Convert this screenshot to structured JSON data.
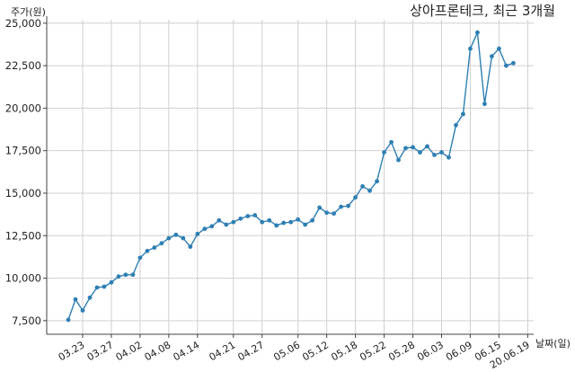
{
  "chart_data": {
    "type": "line",
    "title": "상아프론테크, 최근 3개월",
    "ylabel": "주가(원)",
    "xlabel": "날짜(일)",
    "ylim": [
      6700,
      25200
    ],
    "y_ticks": [
      7500,
      10000,
      12500,
      15000,
      17500,
      20000,
      22500,
      25000
    ],
    "y_tick_labels": [
      "7,500",
      "10,000",
      "12,500",
      "15,000",
      "17,500",
      "20,000",
      "22,500",
      "25,000"
    ],
    "x_tick_labels": [
      "03.23",
      "03.27",
      "04.02",
      "04.08",
      "04.14",
      "04.21",
      "04.27",
      "05.06",
      "05.12",
      "05.18",
      "05.22",
      "05.28",
      "06.03",
      "06.09",
      "06.15",
      "20.06.19"
    ],
    "x_tick_index": [
      2,
      6,
      10,
      14,
      18,
      23,
      27,
      32,
      36,
      40,
      44,
      48,
      52,
      56,
      60,
      64
    ],
    "grid": true,
    "color": "#2e7fb3",
    "series": [
      {
        "values": [
          7550,
          8750,
          8100,
          8850,
          9450,
          9500,
          9750,
          10100,
          10200,
          10200,
          11200,
          11600,
          11800,
          12050,
          12350,
          12550,
          12350,
          11850,
          12600,
          12900,
          13050,
          13400,
          13150,
          13300,
          13500,
          13650,
          13700,
          13300,
          13400,
          13100,
          13250,
          13300,
          13450,
          13150,
          13400,
          14150,
          13850,
          13800,
          14200,
          14250,
          14750,
          15400,
          15150,
          15700,
          17400,
          18000,
          16950,
          17650,
          17700,
          17400,
          17750,
          17250,
          17400,
          17100,
          19000,
          19650,
          23500,
          24450,
          20250,
          23050,
          23500,
          22500,
          22650
        ]
      }
    ]
  }
}
